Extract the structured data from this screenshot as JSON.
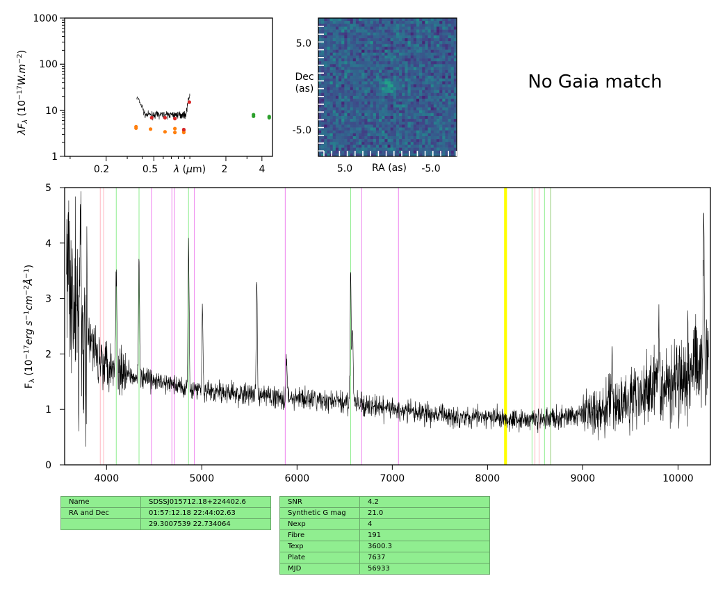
{
  "sed": {
    "ylabel": "λF_λ (10^-17 W.m^-2)",
    "xlabel": "λ (μm)",
    "yticks": [
      "1000",
      "100",
      "10",
      "1"
    ],
    "xticks": [
      "0.2",
      "0.5",
      "2",
      "4"
    ],
    "ylim": [
      1,
      1000
    ],
    "xlim": [
      0.09,
      4.9
    ],
    "scale": "log-log",
    "photometry": [
      {
        "color": "#ff7f0e",
        "points": [
          [
            0.355,
            4.4
          ],
          [
            0.355,
            4.1
          ],
          [
            0.47,
            3.9
          ],
          [
            0.62,
            3.4
          ],
          [
            0.75,
            3.3
          ],
          [
            0.75,
            4.0
          ],
          [
            0.89,
            3.6
          ],
          [
            0.89,
            3.3
          ]
        ]
      },
      {
        "color": "#d62728",
        "points": [
          [
            0.48,
            6.9
          ],
          [
            0.62,
            6.9
          ],
          [
            0.75,
            6.6
          ],
          [
            0.89,
            3.8
          ],
          [
            0.99,
            15.0
          ]
        ]
      },
      {
        "color": "#2ca02c",
        "points": [
          [
            3.4,
            8.0
          ],
          [
            3.4,
            7.4
          ],
          [
            4.6,
            7.3
          ],
          [
            4.6,
            6.9
          ]
        ]
      }
    ]
  },
  "image_panel": {
    "ylabel_line1": "Dec",
    "ylabel_line2": "(as)",
    "xlabel": "RA (as)",
    "xticks": [
      "5.0",
      "-5.0"
    ],
    "yticks": [
      "5.0",
      "-5.0"
    ],
    "colormap": "viridis"
  },
  "gaia_text": "No Gaia match",
  "chart_data": {
    "type": "line",
    "ylabel": "F_λ (10^-17 erg s^-1 cm^-2 Å^-1)",
    "xlabel": "",
    "xlim": [
      3560,
      10340
    ],
    "ylim": [
      0,
      5
    ],
    "xticks": [
      "4000",
      "5000",
      "6000",
      "7000",
      "8000",
      "9000",
      "10000"
    ],
    "yticks": [
      "0",
      "1",
      "2",
      "3",
      "4",
      "5"
    ],
    "continuum": [
      [
        3580,
        3.8
      ],
      [
        3700,
        2.6
      ],
      [
        3900,
        2.0
      ],
      [
        4100,
        1.75
      ],
      [
        4400,
        1.55
      ],
      [
        4800,
        1.4
      ],
      [
        5200,
        1.3
      ],
      [
        5600,
        1.25
      ],
      [
        6000,
        1.2
      ],
      [
        6500,
        1.12
      ],
      [
        7000,
        1.0
      ],
      [
        7500,
        0.9
      ],
      [
        8000,
        0.85
      ],
      [
        8500,
        0.82
      ],
      [
        8800,
        0.85
      ],
      [
        9100,
        0.95
      ],
      [
        9400,
        1.1
      ],
      [
        9700,
        1.35
      ],
      [
        10000,
        1.6
      ],
      [
        10320,
        2.0
      ]
    ],
    "emission_lines": [
      [
        3728,
        1.9
      ],
      [
        4102,
        1.7
      ],
      [
        4341,
        2.1
      ],
      [
        4861,
        2.6
      ],
      [
        5007,
        1.5
      ],
      [
        5577,
        2.1
      ],
      [
        5890,
        0.7
      ],
      [
        6563,
        2.4
      ],
      [
        6583,
        1.5
      ],
      [
        9310,
        0.9
      ],
      [
        9800,
        1.1
      ],
      [
        10270,
        2.5
      ]
    ],
    "marker_lines": [
      {
        "x": 3934,
        "color": "#ffb6c1"
      },
      {
        "x": 3969,
        "color": "#ffb6c1"
      },
      {
        "x": 4102,
        "color": "#90ee90"
      },
      {
        "x": 4341,
        "color": "#90ee90"
      },
      {
        "x": 4471,
        "color": "#ee82ee"
      },
      {
        "x": 4686,
        "color": "#ee82ee"
      },
      {
        "x": 4713,
        "color": "#ee82ee"
      },
      {
        "x": 4861,
        "color": "#90ee90"
      },
      {
        "x": 4922,
        "color": "#ee82ee"
      },
      {
        "x": 5876,
        "color": "#ee82ee"
      },
      {
        "x": 6563,
        "color": "#90ee90"
      },
      {
        "x": 6678,
        "color": "#ee82ee"
      },
      {
        "x": 7065,
        "color": "#ee82ee"
      },
      {
        "x": 8183,
        "color": "#ffff00",
        "width": 2.5
      },
      {
        "x": 8195,
        "color": "#ffff00",
        "width": 2.5
      },
      {
        "x": 8467,
        "color": "#90ee90"
      },
      {
        "x": 8498,
        "color": "#ffb6c1"
      },
      {
        "x": 8542,
        "color": "#ffb6c1"
      },
      {
        "x": 8598,
        "color": "#90ee90"
      },
      {
        "x": 8662,
        "color": "#ffb6c1"
      },
      {
        "x": 8665,
        "color": "#90ee90"
      }
    ]
  },
  "table1": [
    [
      "Name",
      "SDSSJ015712.18+224402.6"
    ],
    [
      "RA and Dec",
      "01:57:12.18    22:44:02.63"
    ],
    [
      "",
      "29.3007539    22.734064"
    ]
  ],
  "table2": [
    [
      "SNR",
      "4.2"
    ],
    [
      "Synthetic G mag",
      "21.0"
    ],
    [
      "Nexp",
      "4"
    ],
    [
      "Fibre",
      "191"
    ],
    [
      "Texp",
      "3600.3"
    ],
    [
      "Plate",
      "7637"
    ],
    [
      "MJD",
      "56933"
    ]
  ]
}
